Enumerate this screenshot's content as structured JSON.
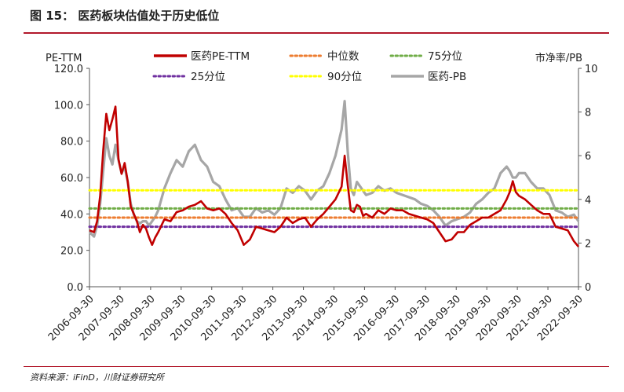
{
  "figure": {
    "title": "图 15：  医药板块估值处于历史低位",
    "source": "资料来源：iFinD，川财证券研究所"
  },
  "chart_data": {
    "type": "line",
    "ylabel_left": "PE-TTM",
    "ylabel_right": "市净率/PB",
    "ylim_left": [
      0,
      120
    ],
    "ylim_right": [
      0,
      10
    ],
    "yticks_left": [
      "0.0",
      "20.0",
      "40.0",
      "60.0",
      "80.0",
      "100.0",
      "120.0"
    ],
    "yticks_right": [
      "0",
      "2",
      "4",
      "6",
      "8",
      "10"
    ],
    "xlim": [
      2006.75,
      2022.75
    ],
    "xticks": [
      "2006-09-30",
      "2007-09-30",
      "2008-09-30",
      "2009-09-30",
      "2010-09-30",
      "2011-09-30",
      "2012-09-30",
      "2013-09-30",
      "2014-09-30",
      "2015-09-30",
      "2016-09-30",
      "2017-09-30",
      "2018-09-30",
      "2019-09-30",
      "2020-09-30",
      "2021-09-30",
      "2022-09-30"
    ],
    "grid": false,
    "legend": "top",
    "series": [
      {
        "name": "医药PE-TTM",
        "axis": "left",
        "style": "solid",
        "color": "#c00000",
        "x": [
          2006.75,
          2006.9,
          2007.0,
          2007.1,
          2007.2,
          2007.3,
          2007.4,
          2007.5,
          2007.6,
          2007.7,
          2007.8,
          2007.9,
          2008.0,
          2008.1,
          2008.2,
          2008.3,
          2008.4,
          2008.5,
          2008.6,
          2008.7,
          2008.8,
          2008.9,
          2009.0,
          2009.2,
          2009.4,
          2009.6,
          2009.8,
          2010.0,
          2010.2,
          2010.4,
          2010.6,
          2010.8,
          2011.0,
          2011.2,
          2011.4,
          2011.6,
          2011.8,
          2012.0,
          2012.2,
          2012.4,
          2012.6,
          2012.8,
          2013.0,
          2013.2,
          2013.4,
          2013.6,
          2013.8,
          2014.0,
          2014.2,
          2014.4,
          2014.6,
          2014.8,
          2015.0,
          2015.1,
          2015.2,
          2015.3,
          2015.4,
          2015.5,
          2015.6,
          2015.7,
          2015.8,
          2016.0,
          2016.2,
          2016.4,
          2016.6,
          2016.8,
          2017.0,
          2017.2,
          2017.4,
          2017.6,
          2017.8,
          2018.0,
          2018.2,
          2018.4,
          2018.6,
          2018.8,
          2019.0,
          2019.2,
          2019.4,
          2019.6,
          2019.8,
          2020.0,
          2020.2,
          2020.4,
          2020.5,
          2020.6,
          2020.7,
          2020.8,
          2021.0,
          2021.2,
          2021.4,
          2021.6,
          2021.8,
          2022.0,
          2022.2,
          2022.4,
          2022.6,
          2022.75
        ],
        "y": [
          31,
          30,
          36,
          50,
          75,
          95,
          86,
          92,
          99,
          70,
          62,
          68,
          58,
          44,
          40,
          36,
          30,
          34,
          32,
          27,
          23,
          27,
          30,
          37,
          36,
          41,
          42,
          44,
          45,
          47,
          43,
          42,
          43,
          40,
          35,
          31,
          23,
          26,
          33,
          32,
          31,
          30,
          33,
          38,
          35,
          37,
          38,
          33,
          37,
          40,
          44,
          48,
          55,
          72,
          56,
          42,
          41,
          45,
          44,
          39,
          40,
          38,
          42,
          40,
          43,
          42,
          42,
          40,
          39,
          38,
          37,
          35,
          30,
          25,
          26,
          30,
          30,
          34,
          36,
          38,
          38,
          40,
          42,
          48,
          52,
          58,
          52,
          50,
          48,
          45,
          42,
          40,
          40,
          33,
          32,
          31,
          25,
          22
        ],
        "note": "values estimated from chart"
      },
      {
        "name": "中位数",
        "axis": "left",
        "style": "dotted",
        "color": "#ed7d31",
        "x": [
          2006.75,
          2022.75
        ],
        "y": [
          38,
          38
        ]
      },
      {
        "name": "75分位",
        "axis": "left",
        "style": "dotted",
        "color": "#70ad47",
        "x": [
          2006.75,
          2022.75
        ],
        "y": [
          43,
          43
        ]
      },
      {
        "name": "25分位",
        "axis": "left",
        "style": "dotted",
        "color": "#7030a0",
        "x": [
          2006.75,
          2022.75
        ],
        "y": [
          33,
          33
        ]
      },
      {
        "name": "90分位",
        "axis": "left",
        "style": "dotted",
        "color": "#ffff00",
        "x": [
          2006.75,
          2022.75
        ],
        "y": [
          53,
          53
        ]
      },
      {
        "name": "医药-PB",
        "axis": "right",
        "style": "solid",
        "color": "#a6a6a6",
        "x": [
          2006.75,
          2006.9,
          2007.0,
          2007.1,
          2007.2,
          2007.3,
          2007.4,
          2007.5,
          2007.6,
          2007.7,
          2007.8,
          2007.9,
          2008.0,
          2008.1,
          2008.2,
          2008.3,
          2008.4,
          2008.5,
          2008.6,
          2008.7,
          2008.8,
          2008.9,
          2009.0,
          2009.2,
          2009.4,
          2009.6,
          2009.8,
          2010.0,
          2010.2,
          2010.4,
          2010.6,
          2010.8,
          2011.0,
          2011.2,
          2011.4,
          2011.6,
          2011.8,
          2012.0,
          2012.2,
          2012.4,
          2012.6,
          2012.8,
          2013.0,
          2013.2,
          2013.4,
          2013.6,
          2013.8,
          2014.0,
          2014.2,
          2014.4,
          2014.6,
          2014.8,
          2015.0,
          2015.1,
          2015.2,
          2015.3,
          2015.4,
          2015.5,
          2015.6,
          2015.7,
          2015.8,
          2016.0,
          2016.2,
          2016.4,
          2016.6,
          2016.8,
          2017.0,
          2017.2,
          2017.4,
          2017.6,
          2017.8,
          2018.0,
          2018.2,
          2018.4,
          2018.6,
          2018.8,
          2019.0,
          2019.2,
          2019.4,
          2019.6,
          2019.8,
          2020.0,
          2020.2,
          2020.4,
          2020.5,
          2020.6,
          2020.7,
          2020.8,
          2021.0,
          2021.2,
          2021.4,
          2021.6,
          2021.8,
          2022.0,
          2022.2,
          2022.4,
          2022.6,
          2022.75
        ],
        "y": [
          2.5,
          2.3,
          2.8,
          3.8,
          5.3,
          6.8,
          6.0,
          5.6,
          6.5,
          5.8,
          5.2,
          5.5,
          4.8,
          3.8,
          3.3,
          3.0,
          2.9,
          3.0,
          3.0,
          2.8,
          3.0,
          3.2,
          3.5,
          4.5,
          5.2,
          5.8,
          5.5,
          6.2,
          6.5,
          5.8,
          5.5,
          4.8,
          4.6,
          4.0,
          3.5,
          3.6,
          3.2,
          3.2,
          3.6,
          3.4,
          3.5,
          3.3,
          3.6,
          4.5,
          4.3,
          4.6,
          4.4,
          4.0,
          4.4,
          4.6,
          5.2,
          6.0,
          7.2,
          8.5,
          6.2,
          4.5,
          4.2,
          4.8,
          4.6,
          4.4,
          4.2,
          4.3,
          4.6,
          4.4,
          4.5,
          4.3,
          4.2,
          4.1,
          4.0,
          3.8,
          3.7,
          3.5,
          3.2,
          2.8,
          3.0,
          3.1,
          3.2,
          3.4,
          3.8,
          4.0,
          4.3,
          4.5,
          5.2,
          5.5,
          5.3,
          5.0,
          5.0,
          5.2,
          5.2,
          4.8,
          4.5,
          4.5,
          4.2,
          3.5,
          3.4,
          3.2,
          3.3,
          3.0
        ],
        "note": "values estimated from chart"
      }
    ]
  }
}
